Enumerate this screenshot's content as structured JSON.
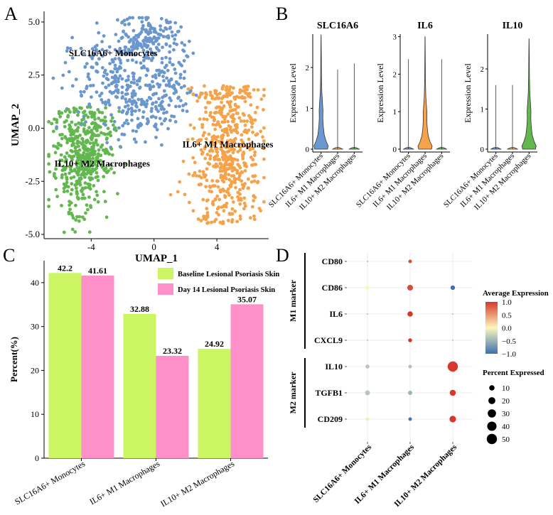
{
  "panel_labels": [
    "A",
    "B",
    "C",
    "D"
  ],
  "colors": {
    "monocytes": "#6b97cf",
    "m1": "#f6a24a",
    "m2": "#63b74f",
    "baseline": "#cbf562",
    "day14": "#ff8fc8",
    "heat_low": "#3e6fb0",
    "heat_mid": "#fbf7bd",
    "heat_high": "#d7382b"
  },
  "chart_data": [
    {
      "id": "A",
      "type": "scatter",
      "xlabel": "UMAP_1",
      "ylabel": "UMAP_2",
      "xlim": [
        -7,
        7.3
      ],
      "ylim": [
        -5.2,
        5.5
      ],
      "x_ticks": [
        -4,
        0,
        4
      ],
      "x_tick_labels": [
        "-4",
        "0",
        "4"
      ],
      "y_ticks": [
        5,
        2.5,
        0,
        -2.5,
        -5
      ],
      "y_tick_labels": [
        "5.0",
        "2.5",
        "0.0",
        "-2.5",
        "-5.0"
      ],
      "clusters": [
        {
          "name": "SLC16A6+ Monocytes",
          "label": "SLC16A6+ Monocytes",
          "label_at": [
            -2.6,
            3.4
          ],
          "color": "#6b97cf",
          "n": 560,
          "center": [
            -1.8,
            2.6
          ],
          "spread": [
            2.3,
            1.9
          ]
        },
        {
          "name": "IL6+ M1 Macrophages",
          "label": "IL6+ M1 Macrophages",
          "label_at": [
            4.7,
            -0.9
          ],
          "color": "#f6a24a",
          "n": 540,
          "center": [
            4.6,
            -0.8
          ],
          "spread": [
            1.2,
            2.5
          ]
        },
        {
          "name": "IL10+ M2 Macrophages",
          "label": "IL10+ M2 Macrophages",
          "label_at": [
            -3.3,
            -1.8
          ],
          "color": "#63b74f",
          "n": 480,
          "center": [
            -4.6,
            -1.3
          ],
          "spread": [
            1.2,
            1.7
          ]
        }
      ]
    },
    {
      "id": "B",
      "type": "violin",
      "ylabel": "Expression Level",
      "categories": [
        "SLC16A6+ Monocytes",
        "IL6+ M1 Macrophages",
        "IL10+ M2 Macrophages"
      ],
      "category_colors": [
        "#6b97cf",
        "#f6a24a",
        "#63b74f"
      ],
      "genes": [
        {
          "title": "SLC16A6",
          "ymax": 2.8,
          "yticks": [
            0,
            1,
            2
          ],
          "maxima": [
            2.8,
            1.95,
            2.1
          ],
          "hi": 0
        },
        {
          "title": "IL6",
          "ymax": 3.05,
          "yticks": [
            0,
            1,
            2,
            3
          ],
          "maxima": [
            2.4,
            3.0,
            2.4
          ],
          "hi": 1
        },
        {
          "title": "IL10",
          "ymax": 2.85,
          "yticks": [
            0,
            1,
            2
          ],
          "maxima": [
            1.6,
            1.6,
            2.75
          ],
          "hi": 2
        }
      ]
    },
    {
      "id": "C",
      "type": "bar",
      "ylabel": "Percent(%)",
      "ylim": [
        0,
        45
      ],
      "yticks": [
        0,
        10,
        20,
        30,
        40
      ],
      "categories": [
        "SLC16A6+ Monocytes",
        "IL6+ M1 Macrophages",
        "IL10+ M2 Macrophages"
      ],
      "series": [
        {
          "name": "Baseline Lesional Psoriasis Skin",
          "values": [
            42.2,
            32.88,
            24.92
          ],
          "labels": [
            "42.2",
            "32.88",
            "24.92"
          ],
          "color": "#cbf562"
        },
        {
          "name": "Day 14 Lesional Psoriasis Skin",
          "values": [
            41.61,
            23.32,
            35.07
          ],
          "labels": [
            "41.61",
            "23.32",
            "35.07"
          ],
          "color": "#ff8fc8"
        }
      ],
      "legend_position": "top-right"
    },
    {
      "id": "D",
      "type": "dotplot",
      "genes": [
        "CD80",
        "CD86",
        "IL6",
        "CXCL9",
        "IL10",
        "TGFB1",
        "CD209"
      ],
      "groups": [
        {
          "label": "M1 marker",
          "genes": [
            "CD80",
            "CD86",
            "IL6",
            "CXCL9"
          ]
        },
        {
          "label": "M2 marker",
          "genes": [
            "IL10",
            "TGFB1",
            "CD209"
          ]
        }
      ],
      "categories": [
        "SLC16A6+ Monocytes",
        "IL6+ M1 Macrophages",
        "IL10+ M2 Macrophages"
      ],
      "avg_expression": [
        [
          -0.5,
          0.9,
          0.0
        ],
        [
          0.0,
          0.9,
          -1.0
        ],
        [
          -0.4,
          1.0,
          -0.4
        ],
        [
          -0.4,
          1.0,
          -0.4
        ],
        [
          -0.35,
          -0.4,
          1.0
        ],
        [
          -0.35,
          -0.5,
          1.0
        ],
        [
          -0.05,
          -0.95,
          1.0
        ]
      ],
      "pct_expressed": [
        [
          0.5,
          3,
          0.5
        ],
        [
          5,
          12,
          6
        ],
        [
          0.5,
          10,
          0.5
        ],
        [
          0.5,
          4,
          0.5
        ],
        [
          4,
          3,
          50
        ],
        [
          8,
          5,
          14
        ],
        [
          4,
          3,
          17
        ]
      ],
      "color_legend": {
        "title": "Average Expression",
        "ticks": [
          1.0,
          0.5,
          0.0,
          -0.5,
          -1.0
        ],
        "tick_labels": [
          "1.0",
          "0.5",
          "0.0",
          "−0.5",
          "−1.0"
        ]
      },
      "size_legend": {
        "title": "Percent Expressed",
        "values": [
          10,
          20,
          30,
          40,
          50
        ],
        "labels": [
          "10",
          "20",
          "30",
          "40",
          "50"
        ]
      }
    }
  ]
}
